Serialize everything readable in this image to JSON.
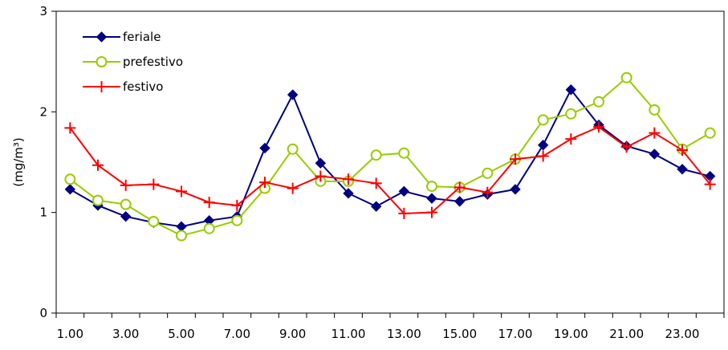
{
  "chart_data": {
    "type": "line",
    "ylabel": "(mg/m³)",
    "ylim": [
      0,
      3
    ],
    "yticks": [
      "0",
      "1",
      "2",
      "3"
    ],
    "x": [
      1,
      2,
      3,
      4,
      5,
      6,
      7,
      8,
      9,
      10,
      11,
      12,
      13,
      14,
      15,
      16,
      17,
      18,
      19,
      20,
      21,
      22,
      23,
      24
    ],
    "xtick_labels": [
      "1.00",
      "3.00",
      "5.00",
      "7.00",
      "9.00",
      "11.00",
      "13.00",
      "15.00",
      "17.00",
      "19.00",
      "21.00",
      "23.00"
    ],
    "xtick_positions": [
      1,
      3,
      5,
      7,
      9,
      11,
      13,
      15,
      17,
      19,
      21,
      23
    ],
    "legend_position": "top-left",
    "series": [
      {
        "name": "feriale",
        "color": "#000080",
        "marker": "diamond",
        "values": [
          1.23,
          1.07,
          0.96,
          0.9,
          0.86,
          0.92,
          0.96,
          1.64,
          2.17,
          1.49,
          1.19,
          1.06,
          1.21,
          1.14,
          1.11,
          1.18,
          1.23,
          1.67,
          2.22,
          1.87,
          1.66,
          1.58,
          1.43,
          1.36
        ]
      },
      {
        "name": "prefestivo",
        "color": "#99cc00",
        "marker": "circle",
        "values": [
          1.33,
          1.12,
          1.08,
          0.91,
          0.77,
          0.84,
          0.92,
          1.24,
          1.63,
          1.31,
          1.31,
          1.57,
          1.59,
          1.26,
          1.25,
          1.39,
          1.53,
          1.92,
          1.98,
          2.1,
          2.34,
          2.02,
          1.63,
          1.79
        ]
      },
      {
        "name": "festivo",
        "color": "#ff0000",
        "marker": "plus",
        "values": [
          1.84,
          1.47,
          1.27,
          1.28,
          1.21,
          1.1,
          1.07,
          1.3,
          1.24,
          1.36,
          1.33,
          1.29,
          0.99,
          1.0,
          1.25,
          1.2,
          1.53,
          1.56,
          1.73,
          1.85,
          1.65,
          1.79,
          1.62,
          1.28
        ]
      }
    ]
  }
}
